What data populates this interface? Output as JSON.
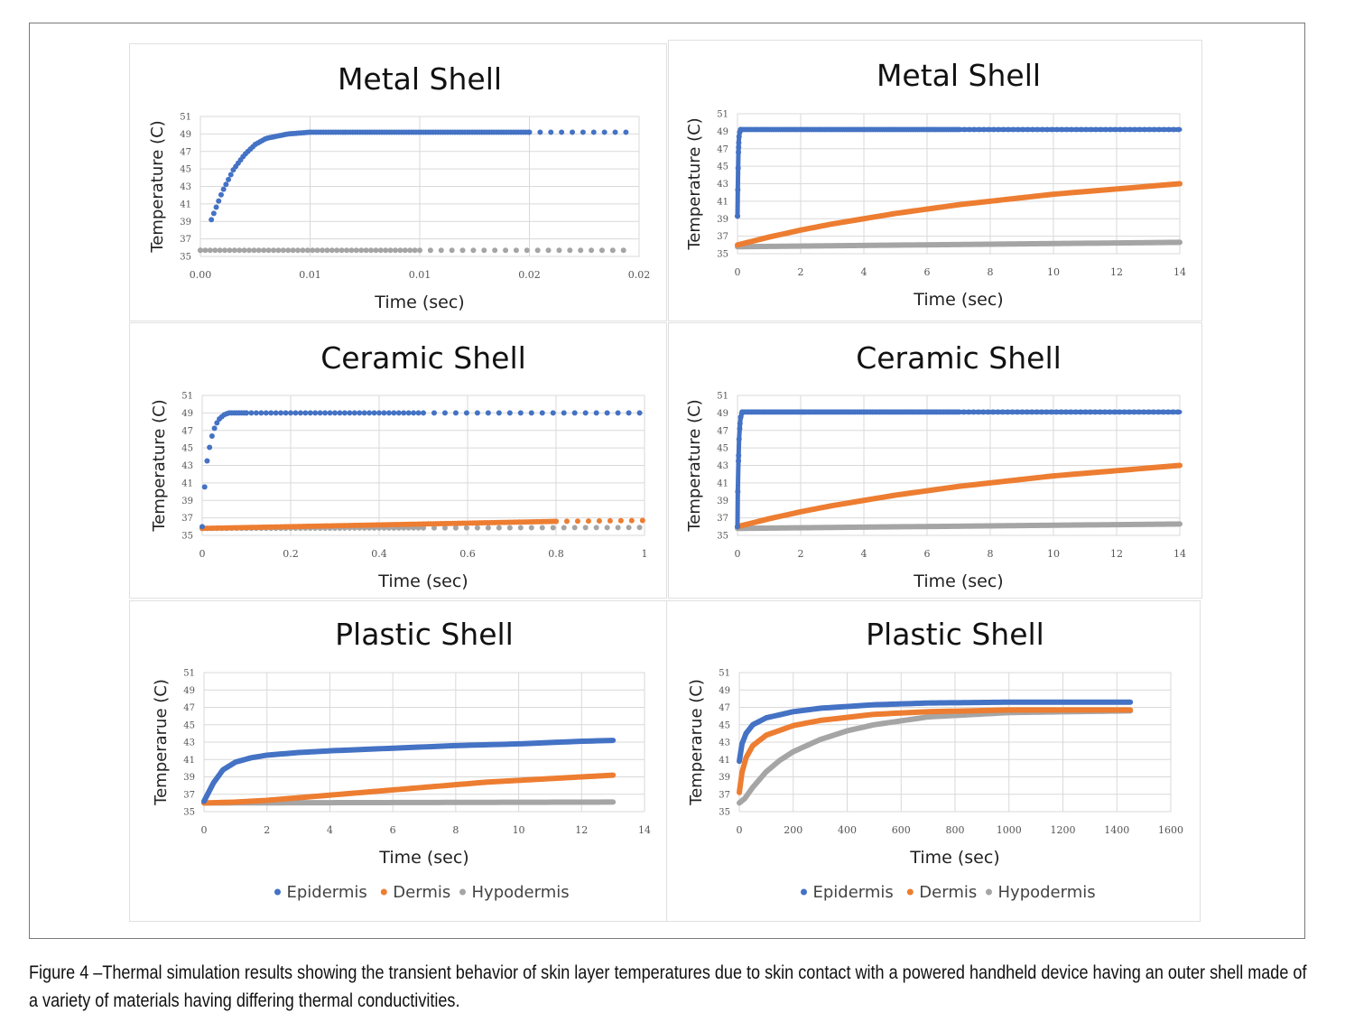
{
  "caption": "Figure 4 –Thermal simulation results showing the transient behavior of skin layer temperatures due to skin contact with a powered handheld device having an outer shell made of a variety of materials having differing thermal conductivities.",
  "colors": {
    "epidermis": "#4472c4",
    "dermis": "#ed7d31",
    "hypodermis": "#a5a5a5"
  },
  "chart_data": [
    {
      "type": "scatter",
      "title": "Metal Shell",
      "xlabel": "Time (sec)",
      "ylabel": "Temperature (C)",
      "xlim": [
        0,
        0.02
      ],
      "ylim": [
        35,
        51
      ],
      "xtick_labels": [
        "0.00",
        "0.01",
        "0.01",
        "0.02",
        "0.02"
      ],
      "ytick_labels": [
        "51",
        "49",
        "47",
        "45",
        "43",
        "41",
        "39",
        "37",
        "35"
      ],
      "grid": true,
      "series": [
        {
          "name": "Epidermis",
          "x": [
            0.0005,
            0.001,
            0.0015,
            0.002,
            0.0025,
            0.003,
            0.004,
            0.005,
            0.0075,
            0.01,
            0.015,
            0.0195
          ],
          "values": [
            39.2,
            42.4,
            44.9,
            46.6,
            47.8,
            48.5,
            49.0,
            49.2,
            49.2,
            49.2,
            49.2,
            49.2
          ]
        },
        {
          "name": "Hypodermis",
          "x": [
            0,
            0.0195
          ],
          "values": [
            35.7,
            35.7
          ]
        }
      ]
    },
    {
      "type": "scatter",
      "title": "Metal Shell",
      "xlabel": "Time (sec)",
      "ylabel": "Temperature (C)",
      "xlim": [
        0,
        14
      ],
      "ylim": [
        35,
        51
      ],
      "xtick_labels": [
        "0",
        "2",
        "4",
        "6",
        "8",
        "10",
        "12",
        "14"
      ],
      "ytick_labels": [
        "51",
        "49",
        "47",
        "45",
        "43",
        "41",
        "39",
        "37",
        "35"
      ],
      "grid": true,
      "series": [
        {
          "name": "Epidermis",
          "x": [
            0,
            0.01,
            0.02,
            0.03,
            0.04,
            0.05,
            0.07,
            0.1,
            14
          ],
          "values": [
            39.3,
            42.3,
            44.8,
            46.6,
            47.7,
            48.4,
            48.9,
            49.2,
            49.2
          ]
        },
        {
          "name": "Dermis",
          "x": [
            0,
            1,
            2,
            3,
            4,
            5,
            6,
            7,
            8,
            9,
            10,
            11,
            12,
            13,
            14
          ],
          "values": [
            36.0,
            36.9,
            37.7,
            38.4,
            39.0,
            39.6,
            40.1,
            40.6,
            41.0,
            41.4,
            41.8,
            42.1,
            42.4,
            42.7,
            43.0
          ]
        },
        {
          "name": "Hypodermis",
          "x": [
            0,
            14
          ],
          "values": [
            35.8,
            36.3
          ]
        }
      ]
    },
    {
      "type": "scatter",
      "title": "Ceramic Shell",
      "xlabel": "Time (sec)",
      "ylabel": "Temperature (C)",
      "xlim": [
        0,
        1
      ],
      "ylim": [
        35,
        51
      ],
      "xtick_labels": [
        "0",
        "0.2",
        "0.4",
        "0.6",
        "0.8",
        "1"
      ],
      "ytick_labels": [
        "51",
        "49",
        "47",
        "45",
        "43",
        "41",
        "39",
        "37",
        "35"
      ],
      "grid": true,
      "series": [
        {
          "name": "Epidermis",
          "x": [
            0,
            0.005,
            0.01,
            0.02,
            0.03,
            0.04,
            0.05,
            0.06,
            0.08,
            0.1,
            1
          ],
          "values": [
            36,
            40.2,
            43.2,
            46.0,
            47.6,
            48.4,
            48.8,
            49.0,
            49.0,
            49.0,
            49.0
          ]
        },
        {
          "name": "Dermis",
          "x": [
            0,
            0.2,
            0.4,
            0.6,
            0.8,
            1
          ],
          "values": [
            35.8,
            36.0,
            36.2,
            36.4,
            36.6,
            36.7
          ]
        },
        {
          "name": "Hypodermis",
          "x": [
            0,
            1
          ],
          "values": [
            35.8,
            35.9
          ]
        }
      ]
    },
    {
      "type": "scatter",
      "title": "Ceramic Shell",
      "xlabel": "Time (sec)",
      "ylabel": "Temperature (C)",
      "xlim": [
        0,
        14
      ],
      "ylim": [
        35,
        51
      ],
      "xtick_labels": [
        "0",
        "2",
        "4",
        "6",
        "8",
        "10",
        "12",
        "14"
      ],
      "ytick_labels": [
        "51",
        "49",
        "47",
        "45",
        "43",
        "41",
        "39",
        "37",
        "35"
      ],
      "grid": true,
      "series": [
        {
          "name": "Epidermis",
          "x": [
            0,
            0.01,
            0.03,
            0.05,
            0.08,
            0.1,
            0.15,
            14
          ],
          "values": [
            36,
            40,
            43.5,
            46,
            47.8,
            48.5,
            49.1,
            49.1
          ]
        },
        {
          "name": "Dermis",
          "x": [
            0,
            1,
            2,
            3,
            4,
            5,
            6,
            7,
            8,
            9,
            10,
            11,
            12,
            13,
            14
          ],
          "values": [
            36.0,
            36.9,
            37.7,
            38.4,
            39.0,
            39.6,
            40.1,
            40.6,
            41.0,
            41.4,
            41.8,
            42.1,
            42.4,
            42.7,
            43.0
          ]
        },
        {
          "name": "Hypodermis",
          "x": [
            0,
            14
          ],
          "values": [
            35.8,
            36.3
          ]
        }
      ]
    },
    {
      "type": "line",
      "title": "Plastic Shell",
      "xlabel": "Time (sec)",
      "ylabel": "Temperarue (C)",
      "xlim": [
        0,
        14
      ],
      "ylim": [
        35,
        51
      ],
      "xtick_labels": [
        "0",
        "2",
        "4",
        "6",
        "8",
        "10",
        "12",
        "14"
      ],
      "ytick_labels": [
        "51",
        "49",
        "47",
        "45",
        "43",
        "41",
        "39",
        "37",
        "35"
      ],
      "grid": true,
      "legend": "bottom",
      "series": [
        {
          "name": "Epidermis",
          "x": [
            0,
            0.3,
            0.6,
            1,
            1.5,
            2,
            3,
            4,
            6,
            8,
            10,
            12,
            13
          ],
          "values": [
            36.2,
            38.3,
            39.8,
            40.7,
            41.2,
            41.5,
            41.8,
            42.0,
            42.3,
            42.6,
            42.8,
            43.1,
            43.2
          ]
        },
        {
          "name": "Dermis",
          "x": [
            0,
            1,
            2,
            3,
            4,
            5,
            6,
            7,
            8,
            9,
            10,
            11,
            12,
            13
          ],
          "values": [
            36.0,
            36.1,
            36.3,
            36.6,
            36.9,
            37.2,
            37.5,
            37.8,
            38.1,
            38.4,
            38.6,
            38.8,
            39.0,
            39.2
          ]
        },
        {
          "name": "Hypodermis",
          "x": [
            0,
            13
          ],
          "values": [
            36.0,
            36.1
          ]
        }
      ]
    },
    {
      "type": "line",
      "title": "Plastic Shell",
      "xlabel": "Time (sec)",
      "ylabel": "Temperarue (C)",
      "xlim": [
        0,
        1600
      ],
      "ylim": [
        35,
        51
      ],
      "xtick_labels": [
        "0",
        "200",
        "400",
        "600",
        "800",
        "1000",
        "1200",
        "1400",
        "1600"
      ],
      "ytick_labels": [
        "51",
        "49",
        "47",
        "45",
        "43",
        "41",
        "39",
        "37",
        "35"
      ],
      "grid": true,
      "legend": "bottom",
      "series": [
        {
          "name": "Epidermis",
          "x": [
            0,
            10,
            25,
            50,
            100,
            200,
            300,
            500,
            700,
            1000,
            1450
          ],
          "values": [
            40.8,
            42.8,
            44.0,
            45.0,
            45.8,
            46.5,
            46.9,
            47.3,
            47.5,
            47.6,
            47.6
          ]
        },
        {
          "name": "Dermis",
          "x": [
            0,
            10,
            25,
            50,
            100,
            200,
            300,
            500,
            700,
            1000,
            1450
          ],
          "values": [
            37.2,
            39.5,
            41.2,
            42.6,
            43.8,
            44.9,
            45.5,
            46.2,
            46.5,
            46.7,
            46.7
          ]
        },
        {
          "name": "Hypodermis",
          "x": [
            0,
            20,
            50,
            100,
            150,
            200,
            300,
            400,
            500,
            700,
            1000,
            1450
          ],
          "values": [
            36.0,
            36.5,
            37.8,
            39.6,
            40.9,
            41.9,
            43.3,
            44.3,
            45.0,
            45.9,
            46.4,
            46.6
          ]
        }
      ]
    }
  ]
}
